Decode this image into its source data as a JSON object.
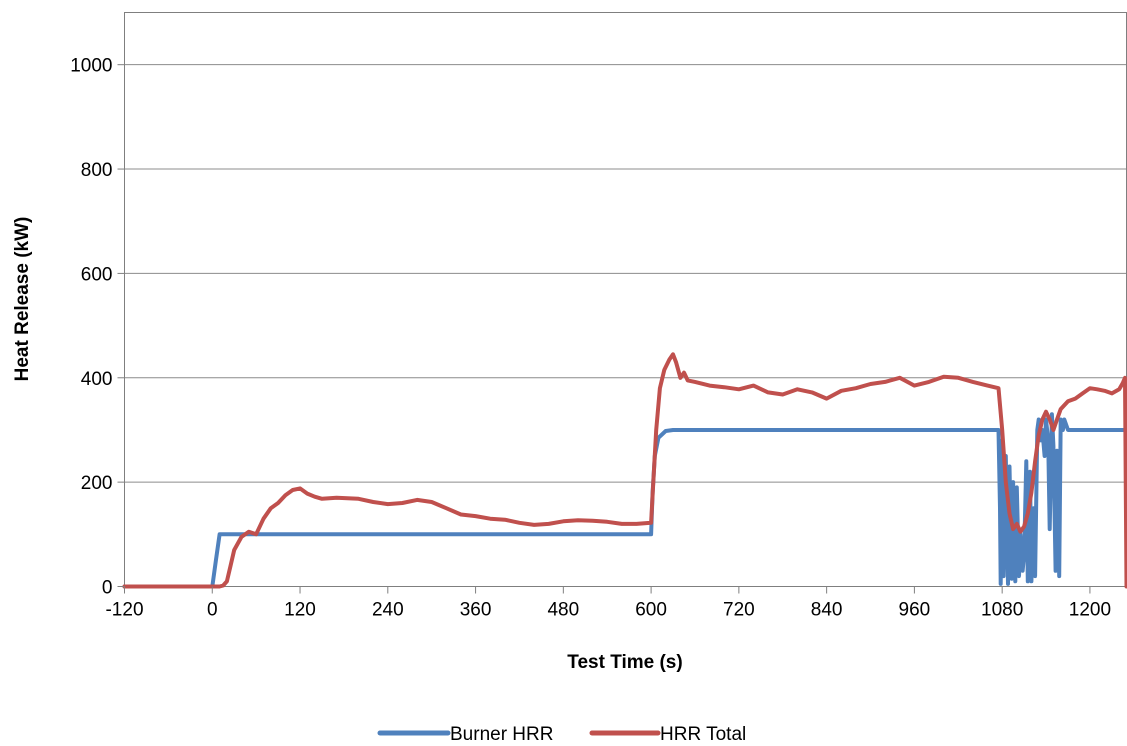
{
  "chart_data": {
    "type": "line",
    "xlabel": "Test Time (s)",
    "ylabel": "Heat Release (kW)",
    "xlim": [
      -120,
      1250
    ],
    "ylim": [
      0,
      1100
    ],
    "x_ticks": [
      "-120",
      "0",
      "120",
      "240",
      "360",
      "480",
      "600",
      "720",
      "840",
      "960",
      "1080",
      "1200"
    ],
    "y_ticks": [
      "0",
      "200",
      "400",
      "600",
      "800",
      "1000"
    ],
    "grid": "horizontal",
    "legend_position": "bottom",
    "series": [
      {
        "name": "Burner HRR",
        "color": "#4F81BD",
        "x": [
          -120,
          0,
          5,
          10,
          15,
          600,
          602,
          605,
          610,
          620,
          630,
          700,
          800,
          900,
          1000,
          1075,
          1077,
          1078,
          1080,
          1082,
          1085,
          1088,
          1090,
          1093,
          1095,
          1098,
          1100,
          1103,
          1105,
          1108,
          1110,
          1113,
          1115,
          1118,
          1120,
          1123,
          1125,
          1128,
          1130,
          1133,
          1135,
          1138,
          1140,
          1143,
          1145,
          1148,
          1150,
          1153,
          1155,
          1158,
          1160,
          1163,
          1165,
          1170,
          1180,
          1200,
          1220,
          1240,
          1248
        ],
        "y": [
          0,
          0,
          50,
          100,
          100,
          100,
          180,
          250,
          285,
          298,
          300,
          300,
          300,
          300,
          300,
          300,
          150,
          5,
          280,
          20,
          250,
          5,
          230,
          15,
          200,
          10,
          190,
          20,
          100,
          30,
          60,
          240,
          10,
          220,
          10,
          150,
          20,
          300,
          320,
          280,
          300,
          250,
          320,
          280,
          110,
          330,
          270,
          30,
          260,
          20,
          320,
          300,
          320,
          300,
          300,
          300,
          300,
          300,
          300
        ]
      },
      {
        "name": "HRR Total",
        "color": "#C0504D",
        "x": [
          -120,
          10,
          15,
          20,
          25,
          30,
          40,
          50,
          60,
          70,
          80,
          90,
          100,
          110,
          120,
          130,
          140,
          150,
          170,
          200,
          220,
          240,
          260,
          280,
          300,
          320,
          340,
          360,
          380,
          400,
          420,
          440,
          460,
          480,
          500,
          520,
          540,
          560,
          580,
          600,
          603,
          607,
          612,
          618,
          625,
          630,
          634,
          640,
          645,
          650,
          660,
          680,
          700,
          720,
          740,
          760,
          780,
          800,
          820,
          840,
          860,
          880,
          900,
          920,
          940,
          960,
          980,
          1000,
          1020,
          1040,
          1060,
          1075,
          1080,
          1085,
          1090,
          1095,
          1100,
          1105,
          1110,
          1115,
          1120,
          1125,
          1130,
          1135,
          1140,
          1145,
          1150,
          1155,
          1160,
          1170,
          1180,
          1190,
          1200,
          1210,
          1220,
          1230,
          1240,
          1245,
          1248,
          1250
        ],
        "y": [
          0,
          0,
          2,
          10,
          40,
          70,
          95,
          105,
          100,
          130,
          150,
          160,
          175,
          185,
          188,
          178,
          172,
          168,
          170,
          168,
          162,
          158,
          160,
          166,
          162,
          150,
          138,
          135,
          130,
          128,
          122,
          118,
          120,
          125,
          127,
          126,
          124,
          120,
          120,
          122,
          200,
          300,
          380,
          415,
          435,
          445,
          430,
          400,
          410,
          395,
          392,
          385,
          382,
          378,
          385,
          372,
          368,
          378,
          372,
          360,
          375,
          380,
          388,
          392,
          400,
          385,
          392,
          402,
          400,
          392,
          385,
          380,
          300,
          200,
          140,
          110,
          120,
          105,
          115,
          140,
          180,
          240,
          290,
          320,
          335,
          320,
          300,
          320,
          340,
          355,
          360,
          370,
          380,
          378,
          375,
          370,
          378,
          390,
          400,
          0
        ]
      }
    ]
  }
}
